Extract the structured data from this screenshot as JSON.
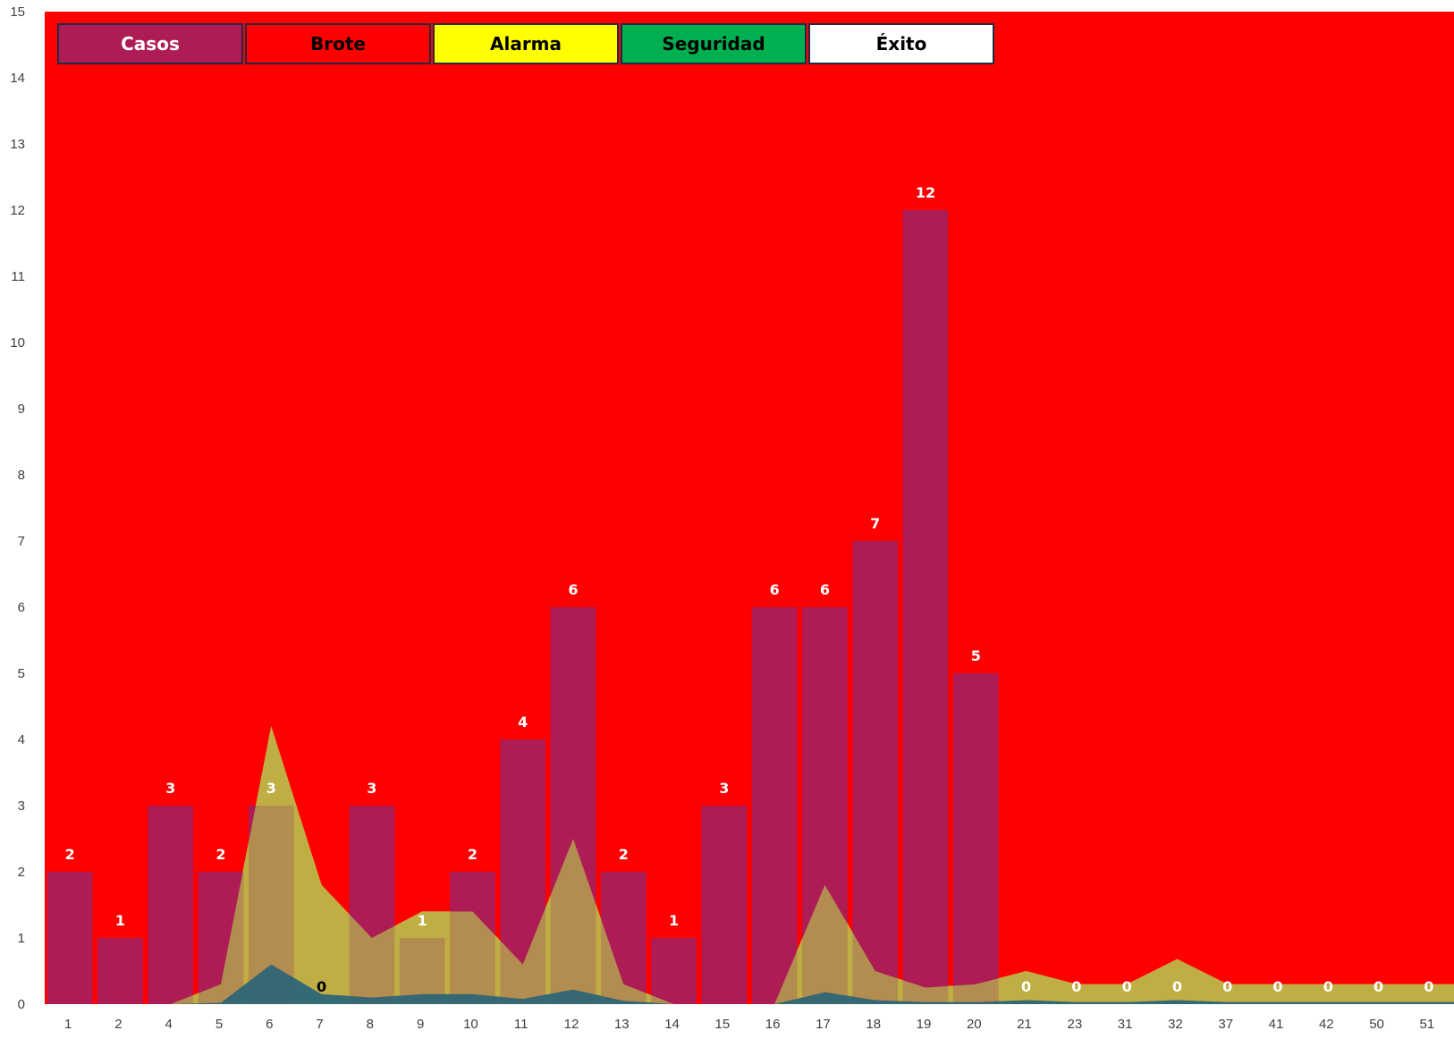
{
  "chart_data": {
    "type": "bar",
    "categories": [
      "1",
      "2",
      "4",
      "5",
      "6",
      "7",
      "8",
      "9",
      "10",
      "11",
      "12",
      "13",
      "14",
      "15",
      "16",
      "17",
      "18",
      "19",
      "20",
      "21",
      "23",
      "31",
      "32",
      "37",
      "41",
      "42",
      "50",
      "51"
    ],
    "ylim": [
      0,
      15
    ],
    "yticks": [
      "0",
      "1",
      "2",
      "3",
      "4",
      "5",
      "6",
      "7",
      "8",
      "9",
      "10",
      "11",
      "12",
      "13",
      "14",
      "15"
    ],
    "series": [
      {
        "name": "Casos",
        "type": "bar",
        "color": "#ad1c54",
        "values": [
          2,
          1,
          3,
          2,
          3,
          0,
          3,
          1,
          2,
          4,
          6,
          2,
          1,
          3,
          6,
          6,
          7,
          12,
          5,
          0,
          0,
          0,
          0,
          0,
          0,
          0,
          0,
          0
        ],
        "labels": [
          "2",
          "1",
          "3",
          "2",
          "3",
          "0",
          "3",
          "1",
          "2",
          "4",
          "6",
          "2",
          "1",
          "3",
          "6",
          "6",
          "7",
          "12",
          "5",
          "0",
          "0",
          "0",
          "0",
          "0",
          "0",
          "0",
          "0",
          "0"
        ]
      },
      {
        "name": "Brote",
        "type": "area",
        "color": "#ff0000",
        "values": [
          15,
          15,
          15,
          15,
          15,
          15,
          15,
          15,
          15,
          15,
          15,
          15,
          15,
          15,
          15,
          15,
          15,
          15,
          15,
          15,
          15,
          15,
          15,
          15,
          15,
          15,
          15,
          15
        ]
      },
      {
        "name": "Alarma",
        "type": "area",
        "color": "#ffff00",
        "values": [
          0,
          0,
          0,
          0.3,
          4.2,
          1.8,
          1.0,
          1.4,
          1.4,
          0.6,
          2.5,
          0.3,
          0,
          0,
          0,
          1.8,
          0.5,
          0.25,
          0.3,
          0.5,
          0.3,
          0.3,
          0.68,
          0.3,
          0.3,
          0.3,
          0.3,
          0.3
        ]
      },
      {
        "name": "Seguridad",
        "type": "area",
        "color": "#00b050",
        "values": [
          0,
          0,
          0,
          0.02,
          0.6,
          0.15,
          0.1,
          0.15,
          0.15,
          0.08,
          0.22,
          0.05,
          0,
          0,
          0,
          0.18,
          0.06,
          0.03,
          0.03,
          0.06,
          0.03,
          0.03,
          0.06,
          0.03,
          0.03,
          0.03,
          0.03,
          0.03
        ]
      },
      {
        "name": "Éxito",
        "type": "area",
        "color": "#ffffff",
        "values": [
          0,
          0,
          0,
          0,
          0.04,
          0.01,
          0,
          0,
          0,
          0,
          0.01,
          0,
          0,
          0,
          0,
          0.01,
          0,
          0,
          0,
          0,
          0,
          0,
          0,
          0,
          0,
          0,
          0,
          0
        ]
      }
    ]
  },
  "legend": [
    {
      "label": "Casos",
      "bg": "#ad1c54",
      "fg": "#ffffff"
    },
    {
      "label": "Brote",
      "bg": "#ff0000",
      "fg": "#000000"
    },
    {
      "label": "Alarma",
      "bg": "#ffff00",
      "fg": "#000000"
    },
    {
      "label": "Seguridad",
      "bg": "#00b050",
      "fg": "#000000"
    },
    {
      "label": "Éxito",
      "bg": "#ffffff",
      "fg": "#000000"
    }
  ]
}
